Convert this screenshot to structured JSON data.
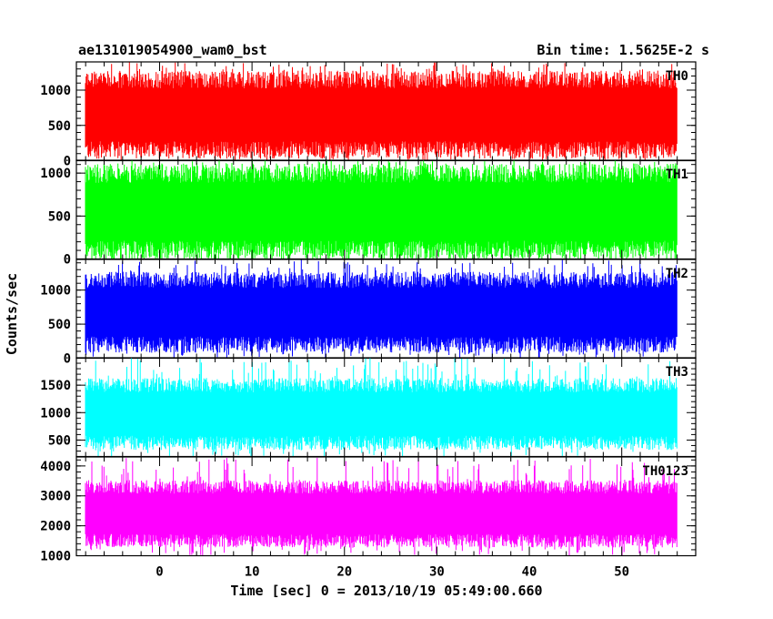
{
  "chart_data": {
    "type": "line",
    "title": "ae131019054900_wam0_bst",
    "bin_time_label": "Bin time: 1.5625E-2 s",
    "xlabel": "Time [sec] 0 = 2013/10/19 05:49:00.660",
    "ylabel": "Counts/sec",
    "xlim": [
      -9,
      58
    ],
    "data_x_range": [
      -8,
      56
    ],
    "x_ticks": [
      0,
      10,
      20,
      30,
      40,
      50
    ],
    "panels": [
      {
        "name": "TH0",
        "color": "#ff0000",
        "ylim": [
          0,
          1400
        ],
        "y_ticks": [
          0,
          500,
          1000
        ],
        "typical_range": [
          150,
          1150
        ],
        "min": 0,
        "max": 1400
      },
      {
        "name": "TH1",
        "color": "#00ff00",
        "ylim": [
          0,
          1150
        ],
        "y_ticks": [
          0,
          500,
          1000
        ],
        "typical_range": [
          100,
          1000
        ],
        "min": 0,
        "max": 1150
      },
      {
        "name": "TH2",
        "color": "#0000ff",
        "ylim": [
          0,
          1450
        ],
        "y_ticks": [
          0,
          500,
          1000
        ],
        "typical_range": [
          200,
          1150
        ],
        "min": 0,
        "max": 1450
      },
      {
        "name": "TH3",
        "color": "#00ffff",
        "ylim": [
          200,
          2000
        ],
        "y_ticks": [
          500,
          1000,
          1500
        ],
        "typical_range": [
          450,
          1500
        ],
        "min": 200,
        "max": 2000
      },
      {
        "name": "TH0123",
        "color": "#ff00ff",
        "ylim": [
          1000,
          4300
        ],
        "y_ticks": [
          1000,
          2000,
          3000,
          4000
        ],
        "typical_range": [
          1500,
          3300
        ],
        "min": 1000,
        "max": 4300
      }
    ]
  }
}
